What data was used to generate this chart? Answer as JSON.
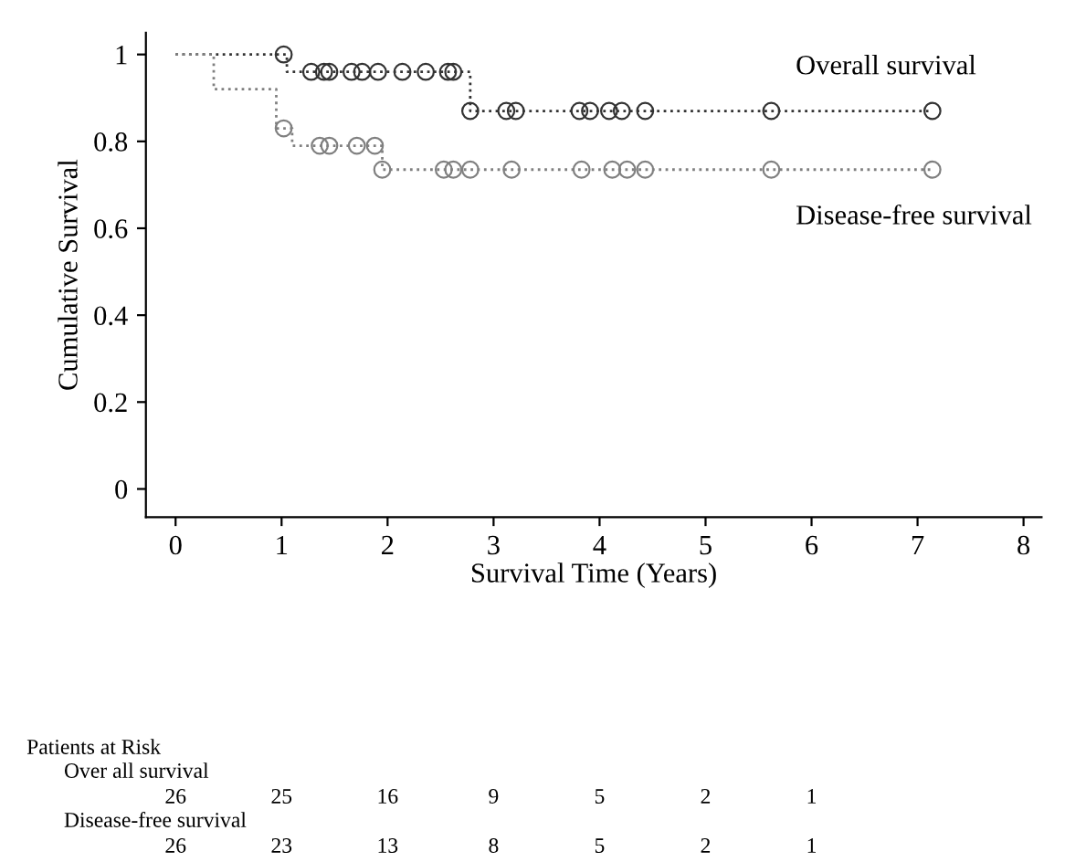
{
  "chart_data": {
    "type": "step",
    "xlabel": "Survival Time (Years)",
    "ylabel": "Cumulative Survival",
    "xlim": [
      -0.28,
      8.17
    ],
    "ylim": [
      -0.065,
      1.05
    ],
    "xticks": [
      0,
      1,
      2,
      3,
      4,
      5,
      6,
      7,
      8
    ],
    "yticks": [
      0,
      0.2,
      0.4,
      0.6,
      0.8,
      1
    ],
    "line_style": "dotted",
    "grid": false,
    "legend": false,
    "series": [
      {
        "name": "Overall survival",
        "color": "#333333",
        "x": [
          0,
          1.05,
          2.78,
          7.14
        ],
        "values": [
          1,
          0.96,
          0.87,
          0.87
        ]
      },
      {
        "name": "Disease-free survival",
        "color": "#808080",
        "x": [
          0,
          0.36,
          0.95,
          1.1,
          1.95,
          7.14
        ],
        "values": [
          1,
          0.92,
          0.83,
          0.79,
          0.735,
          0.735
        ]
      },
      {
        "type": "scatter",
        "marker": "circle",
        "color": "#333333",
        "x": [
          1.02,
          1.28,
          1.4,
          1.45,
          1.66,
          1.76,
          1.91,
          2.14,
          2.36,
          2.57,
          2.62,
          2.78,
          3.12,
          3.21,
          3.81,
          3.91,
          4.09,
          4.21,
          4.43,
          5.62,
          7.14
        ],
        "values": [
          1,
          0.96,
          0.96,
          0.96,
          0.96,
          0.96,
          0.96,
          0.96,
          0.96,
          0.96,
          0.96,
          0.87,
          0.87,
          0.87,
          0.87,
          0.87,
          0.87,
          0.87,
          0.87,
          0.87,
          0.87
        ]
      },
      {
        "type": "scatter",
        "marker": "circle",
        "color": "#808080",
        "x": [
          1.02,
          1.36,
          1.45,
          1.71,
          1.88,
          1.95,
          2.53,
          2.62,
          2.78,
          3.17,
          3.83,
          4.12,
          4.26,
          4.43,
          5.62,
          7.14
        ],
        "values": [
          0.83,
          0.79,
          0.79,
          0.79,
          0.79,
          0.735,
          0.735,
          0.735,
          0.735,
          0.735,
          0.735,
          0.735,
          0.735,
          0.735,
          0.735,
          0.735
        ]
      }
    ],
    "annotations": [
      "Patients at Risk",
      "Over all survival",
      "26",
      "25",
      "16",
      "9",
      "5",
      "2",
      "1",
      "Disease-free survival",
      "26",
      "23",
      "13",
      "8",
      "5",
      "2",
      "1"
    ]
  }
}
